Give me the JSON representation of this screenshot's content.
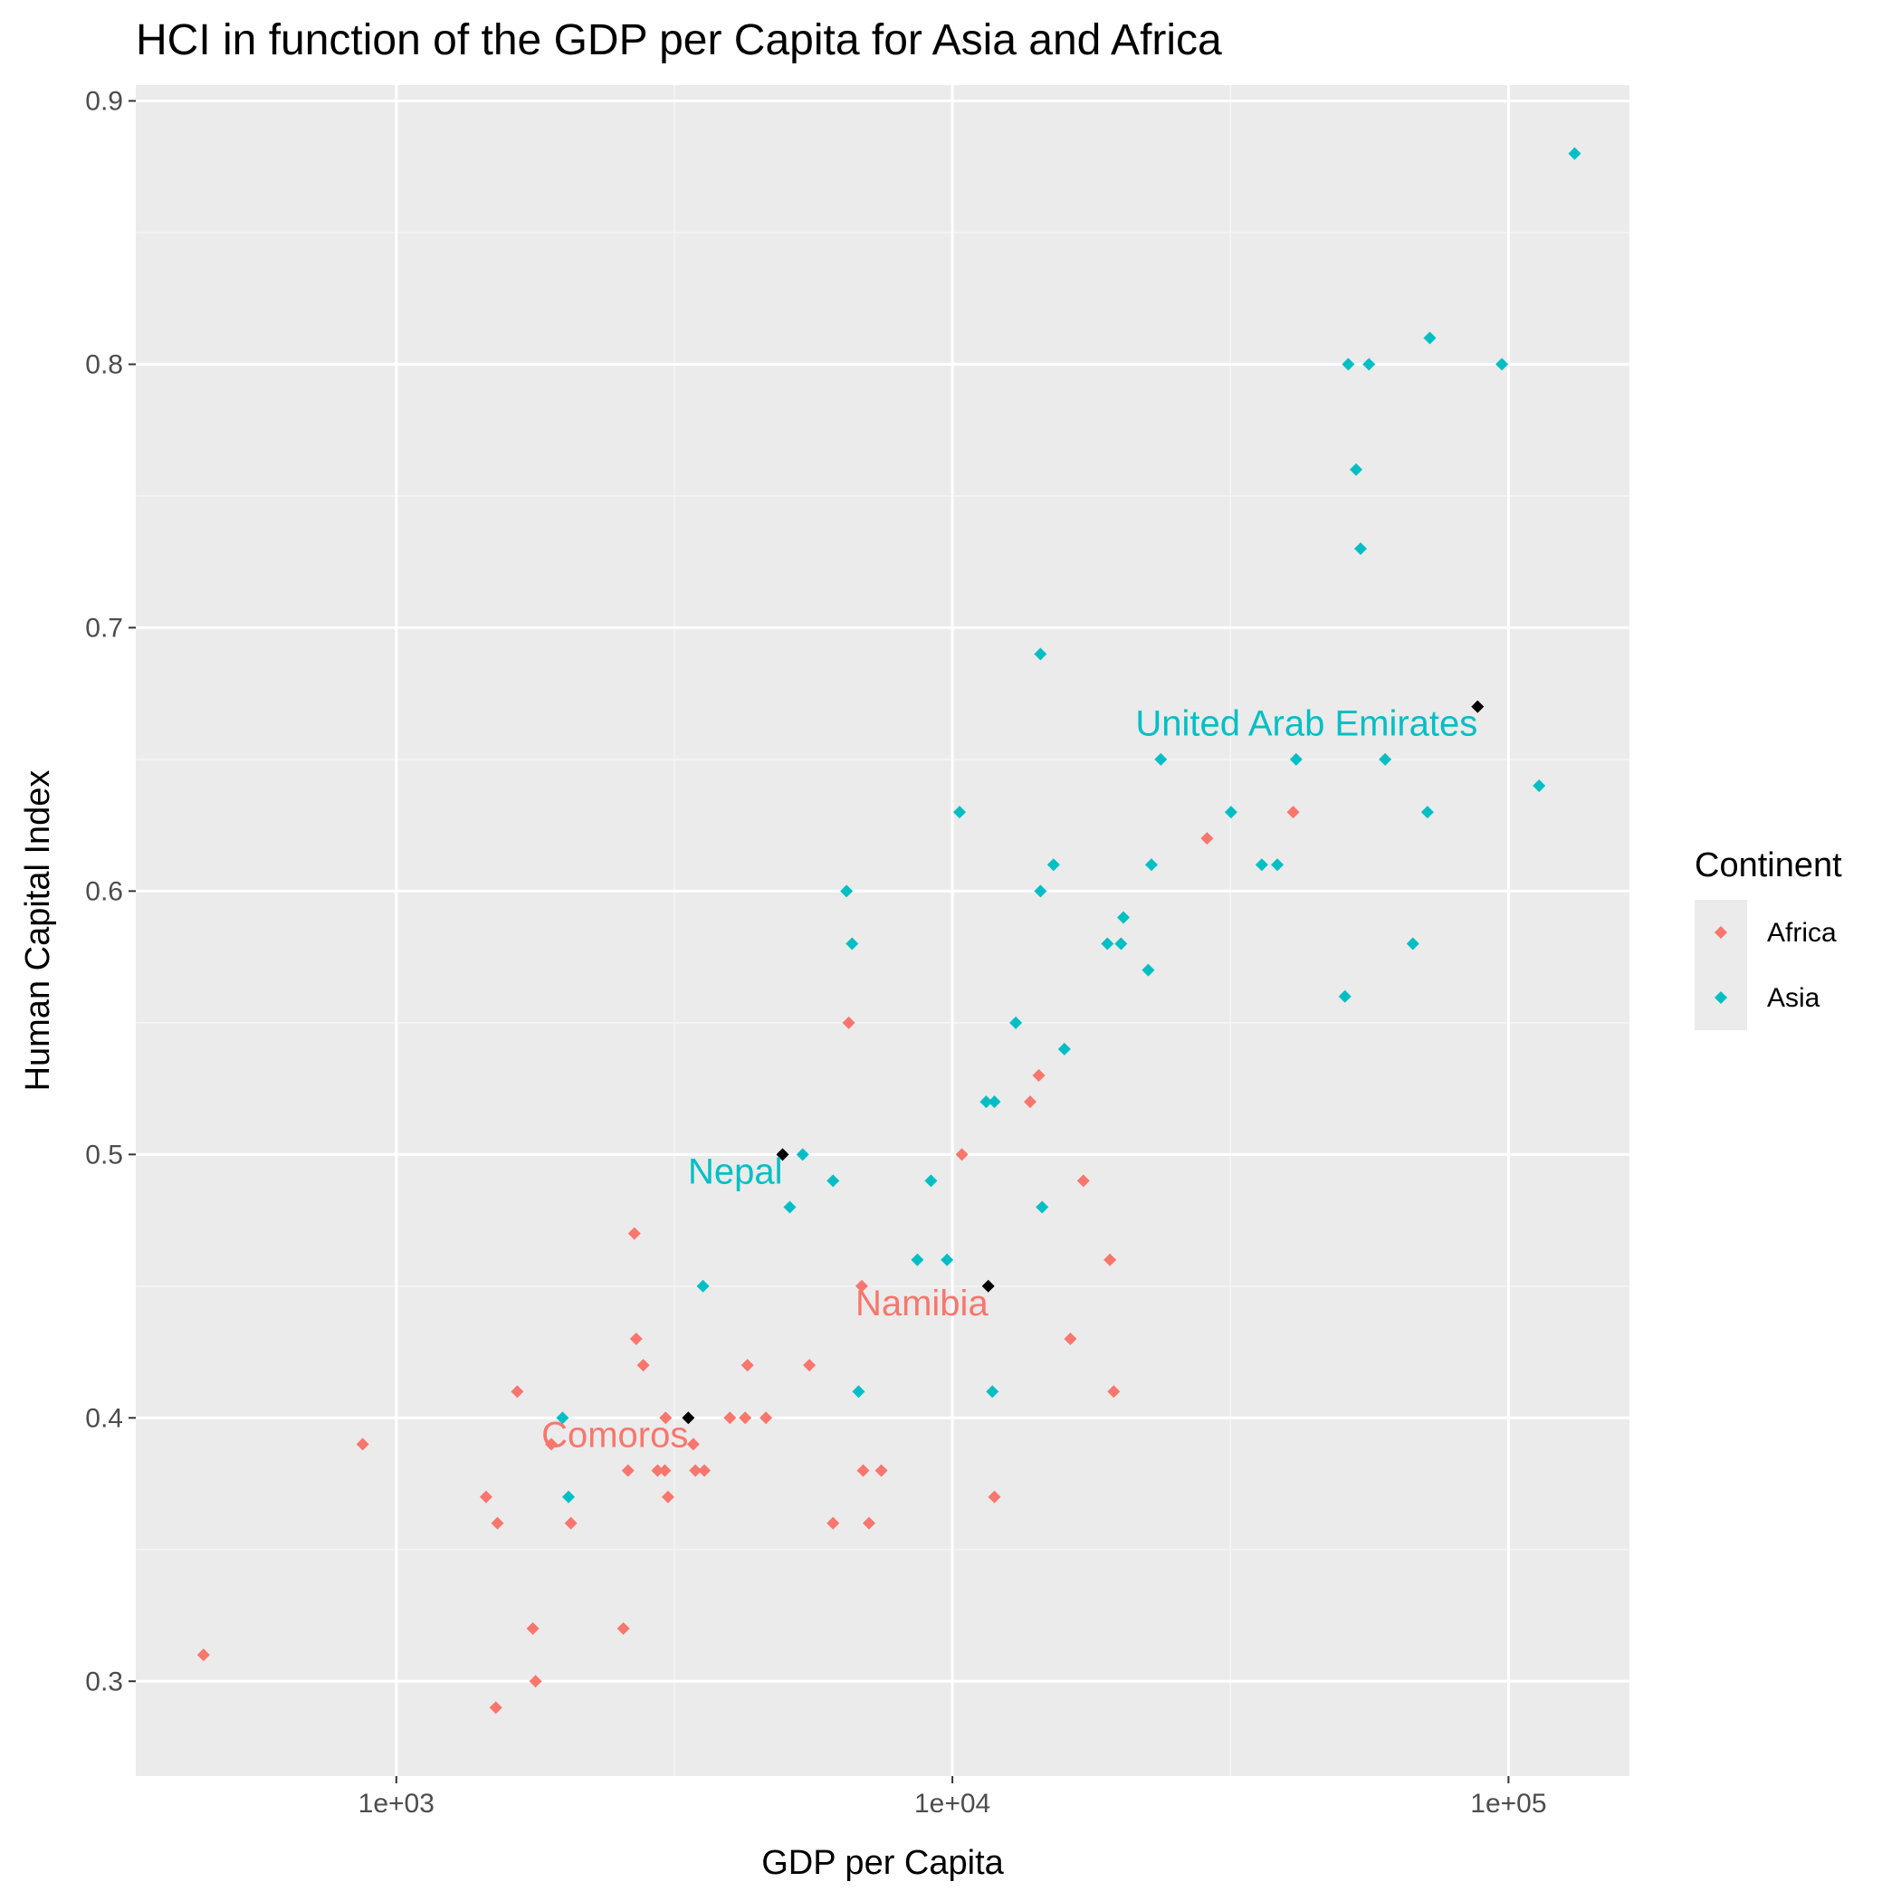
{
  "chart_data": {
    "type": "scatter",
    "title": "HCI in function of the GDP per Capita for Asia and Africa",
    "xlabel": "GDP per Capita",
    "ylabel": "Human Capital Index",
    "x_scale": "log10",
    "xlim": [
      340,
      165000
    ],
    "ylim": [
      0.264,
      0.906
    ],
    "x_ticks": [
      {
        "value": 1000,
        "label": "1e+03"
      },
      {
        "value": 10000,
        "label": "1e+04"
      },
      {
        "value": 100000,
        "label": "1e+05"
      }
    ],
    "y_ticks": [
      {
        "value": 0.3,
        "label": "0.3"
      },
      {
        "value": 0.4,
        "label": "0.4"
      },
      {
        "value": 0.5,
        "label": "0.5"
      },
      {
        "value": 0.6,
        "label": "0.6"
      },
      {
        "value": 0.7,
        "label": "0.7"
      },
      {
        "value": 0.8,
        "label": "0.8"
      },
      {
        "value": 0.9,
        "label": "0.9"
      }
    ],
    "grid": true,
    "legend": {
      "title": "Continent",
      "position": "right"
    },
    "series": [
      {
        "name": "Africa",
        "color": "#F8766D",
        "points": [
          {
            "x": 450,
            "y": 0.31
          },
          {
            "x": 870,
            "y": 0.39
          },
          {
            "x": 1450,
            "y": 0.37
          },
          {
            "x": 1520,
            "y": 0.36
          },
          {
            "x": 1510,
            "y": 0.29
          },
          {
            "x": 1650,
            "y": 0.41
          },
          {
            "x": 1760,
            "y": 0.32
          },
          {
            "x": 1780,
            "y": 0.3
          },
          {
            "x": 1900,
            "y": 0.39
          },
          {
            "x": 2060,
            "y": 0.36
          },
          {
            "x": 2560,
            "y": 0.32
          },
          {
            "x": 2610,
            "y": 0.38
          },
          {
            "x": 2680,
            "y": 0.47
          },
          {
            "x": 2700,
            "y": 0.43
          },
          {
            "x": 2780,
            "y": 0.42
          },
          {
            "x": 2950,
            "y": 0.38
          },
          {
            "x": 3040,
            "y": 0.38
          },
          {
            "x": 3050,
            "y": 0.4
          },
          {
            "x": 3080,
            "y": 0.37
          },
          {
            "x": 3420,
            "y": 0.39
          },
          {
            "x": 3450,
            "y": 0.38
          },
          {
            "x": 3580,
            "y": 0.38
          },
          {
            "x": 3980,
            "y": 0.4
          },
          {
            "x": 4240,
            "y": 0.4
          },
          {
            "x": 4280,
            "y": 0.42
          },
          {
            "x": 4620,
            "y": 0.4
          },
          {
            "x": 5530,
            "y": 0.42
          },
          {
            "x": 6100,
            "y": 0.36
          },
          {
            "x": 6510,
            "y": 0.55
          },
          {
            "x": 6870,
            "y": 0.45
          },
          {
            "x": 6910,
            "y": 0.38
          },
          {
            "x": 7080,
            "y": 0.36
          },
          {
            "x": 7450,
            "y": 0.38
          },
          {
            "x": 10400,
            "y": 0.5
          },
          {
            "x": 11900,
            "y": 0.37
          },
          {
            "x": 13800,
            "y": 0.52
          },
          {
            "x": 14300,
            "y": 0.53
          },
          {
            "x": 16300,
            "y": 0.43
          },
          {
            "x": 17200,
            "y": 0.49
          },
          {
            "x": 19200,
            "y": 0.46
          },
          {
            "x": 19500,
            "y": 0.41
          },
          {
            "x": 28700,
            "y": 0.62
          },
          {
            "x": 41000,
            "y": 0.63
          }
        ]
      },
      {
        "name": "Asia",
        "color": "#00BFC4",
        "points": [
          {
            "x": 1990,
            "y": 0.4
          },
          {
            "x": 2040,
            "y": 0.37
          },
          {
            "x": 3560,
            "y": 0.45
          },
          {
            "x": 5100,
            "y": 0.48
          },
          {
            "x": 5380,
            "y": 0.5
          },
          {
            "x": 6100,
            "y": 0.49
          },
          {
            "x": 6450,
            "y": 0.6
          },
          {
            "x": 6600,
            "y": 0.58
          },
          {
            "x": 6780,
            "y": 0.41
          },
          {
            "x": 8650,
            "y": 0.46
          },
          {
            "x": 9150,
            "y": 0.49
          },
          {
            "x": 9780,
            "y": 0.46
          },
          {
            "x": 10300,
            "y": 0.63
          },
          {
            "x": 11500,
            "y": 0.52
          },
          {
            "x": 11900,
            "y": 0.52
          },
          {
            "x": 11800,
            "y": 0.41
          },
          {
            "x": 13000,
            "y": 0.55
          },
          {
            "x": 14400,
            "y": 0.69
          },
          {
            "x": 14400,
            "y": 0.6
          },
          {
            "x": 14500,
            "y": 0.48
          },
          {
            "x": 15200,
            "y": 0.61
          },
          {
            "x": 15900,
            "y": 0.54
          },
          {
            "x": 19000,
            "y": 0.58
          },
          {
            "x": 20300,
            "y": 0.59
          },
          {
            "x": 20100,
            "y": 0.58
          },
          {
            "x": 22500,
            "y": 0.57
          },
          {
            "x": 22800,
            "y": 0.61
          },
          {
            "x": 23700,
            "y": 0.65
          },
          {
            "x": 31700,
            "y": 0.63
          },
          {
            "x": 36000,
            "y": 0.61
          },
          {
            "x": 38400,
            "y": 0.61
          },
          {
            "x": 41500,
            "y": 0.65
          },
          {
            "x": 50800,
            "y": 0.56
          },
          {
            "x": 51500,
            "y": 0.8
          },
          {
            "x": 53200,
            "y": 0.76
          },
          {
            "x": 54200,
            "y": 0.73
          },
          {
            "x": 56100,
            "y": 0.8
          },
          {
            "x": 60000,
            "y": 0.65
          },
          {
            "x": 67300,
            "y": 0.58
          },
          {
            "x": 71500,
            "y": 0.63
          },
          {
            "x": 72200,
            "y": 0.81
          },
          {
            "x": 97300,
            "y": 0.8
          },
          {
            "x": 113500,
            "y": 0.64
          },
          {
            "x": 131500,
            "y": 0.88
          }
        ]
      }
    ],
    "highlight_color": "#000000",
    "annotations": [
      {
        "label": "United Arab Emirates",
        "series": "Asia",
        "x": 88000,
        "y": 0.67
      },
      {
        "label": "Nepal",
        "series": "Asia",
        "x": 4950,
        "y": 0.5
      },
      {
        "label": "Namibia",
        "series": "Africa",
        "x": 11600,
        "y": 0.45
      },
      {
        "label": "Comoros",
        "series": "Africa",
        "x": 3350,
        "y": 0.4
      }
    ]
  }
}
